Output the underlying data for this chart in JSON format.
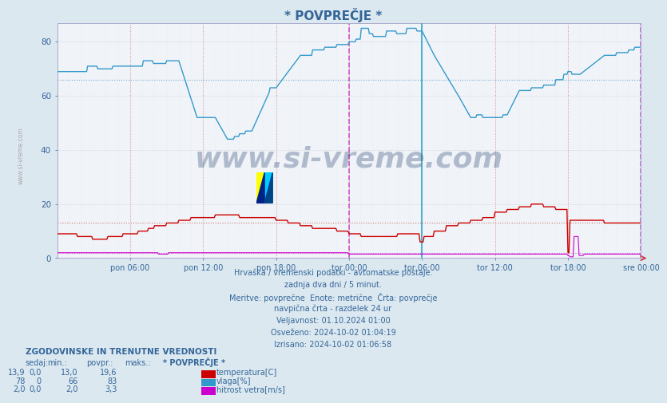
{
  "title": "* POVPREČJE *",
  "background_color": "#dce8f0",
  "plot_bg_color": "#f0f4f8",
  "title_color": "#336699",
  "x_labels": [
    "pon 06:00",
    "pon 12:00",
    "pon 18:00",
    "tor 00:00",
    "tor 06:00",
    "tor 12:00",
    "tor 18:00",
    "sre 00:00"
  ],
  "ylim": [
    0,
    87
  ],
  "yticks": [
    0,
    20,
    40,
    60,
    80
  ],
  "temp_avg": 13.0,
  "humidity_avg": 66,
  "wind_avg": 2.0,
  "temp_color": "#cc0000",
  "humidity_color": "#3399cc",
  "wind_color": "#cc00cc",
  "vline_midnight_color": "#cc44cc",
  "vline_6h_color": "#cc7777",
  "ref_temp_color": "#cc7777",
  "ref_humidity_color": "#77aacc",
  "ref_wind_color": "#cc77cc",
  "watermark_text": "www.si-vreme.com",
  "watermark_color": "#1a3a6a",
  "watermark_alpha": 0.3,
  "sidebar_text": "www.si-vreme.com",
  "subtitle_lines": [
    "Hrvaška / vremenski podatki - avtomatske postaje.",
    "zadnja dva dni / 5 minut.",
    "Meritve: povprečne  Enote: metrične  Črta: povprečje",
    "navpična črta - razdelek 24 ur",
    "Veljavnost: 01.10.2024 01:00",
    "Osveženo: 2024-10-02 01:04:19",
    "Izrisano: 2024-10-02 01:06:58"
  ],
  "legend_header": "ZGODOVINSKE IN TRENUTNE VREDNOSTI",
  "legend_cols": [
    "sedaj:",
    "min.:",
    "povpr.:",
    "maks.:"
  ],
  "legend_rows": [
    {
      "vals": [
        "13,9",
        "0,0",
        "13,0",
        "19,6"
      ],
      "label": "temperatura[C]",
      "color": "#cc0000"
    },
    {
      "vals": [
        "78",
        "0",
        "66",
        "83"
      ],
      "label": "vlaga[%]",
      "color": "#3399cc"
    },
    {
      "vals": [
        "2,0",
        "0,0",
        "2,0",
        "3,3"
      ],
      "label": "hitrost vetra[m/s]",
      "color": "#cc00cc"
    }
  ],
  "legend_label2": "* POVPREČJE *",
  "text_color": "#336699"
}
